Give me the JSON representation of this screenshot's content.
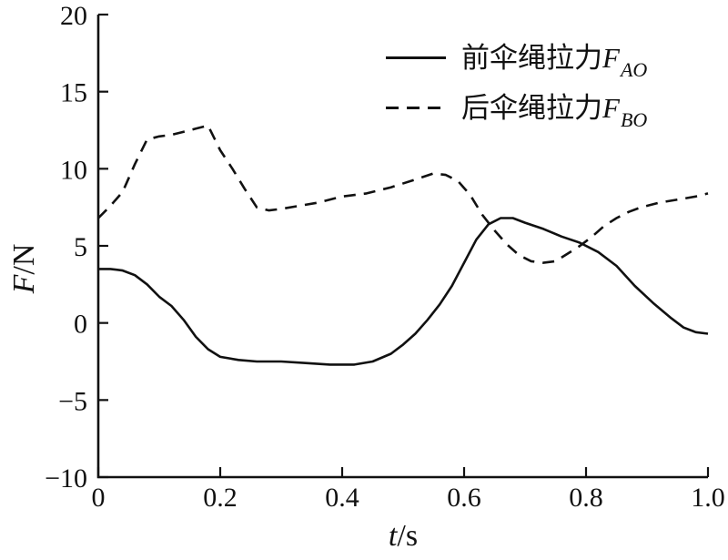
{
  "figure": {
    "background": "#ffffff",
    "ink_color": "#111111"
  },
  "axes": {
    "y_title_sym": "F",
    "y_title_rest": "/N",
    "x_title_sym": "t",
    "x_title_rest": "/s",
    "x_tick_labels": [
      "0",
      "0.2",
      "0.4",
      "0.6",
      "0.8",
      "1.0"
    ],
    "y_tick_labels": [
      "−10",
      "−5",
      "0",
      "5",
      "10",
      "15",
      "20"
    ]
  },
  "legend": {
    "items": [
      {
        "line_style": "solid",
        "text_cn": "前伞绳拉力",
        "sym": "F",
        "sub": "AO"
      },
      {
        "line_style": "dashed",
        "text_cn": "后伞绳拉力",
        "sym": "F",
        "sub": "BO"
      }
    ]
  },
  "chart_data": {
    "type": "line",
    "title": "",
    "xlabel": "t/s",
    "ylabel": "F/N",
    "xlim": [
      0,
      1.0
    ],
    "ylim": [
      -10,
      20
    ],
    "xticks": [
      0,
      0.2,
      0.4,
      0.6,
      0.8,
      1.0
    ],
    "yticks": [
      -10,
      -5,
      0,
      5,
      10,
      15,
      20
    ],
    "grid": false,
    "legend_position": "upper-right-inside",
    "series": [
      {
        "name": "前伞绳拉力F_AO",
        "style": "solid",
        "color": "#111111",
        "points": [
          [
            0.0,
            3.5
          ],
          [
            0.02,
            3.5
          ],
          [
            0.04,
            3.4
          ],
          [
            0.06,
            3.1
          ],
          [
            0.08,
            2.5
          ],
          [
            0.1,
            1.7
          ],
          [
            0.12,
            1.1
          ],
          [
            0.14,
            0.2
          ],
          [
            0.16,
            -0.9
          ],
          [
            0.18,
            -1.7
          ],
          [
            0.2,
            -2.2
          ],
          [
            0.23,
            -2.4
          ],
          [
            0.26,
            -2.5
          ],
          [
            0.3,
            -2.5
          ],
          [
            0.34,
            -2.6
          ],
          [
            0.38,
            -2.7
          ],
          [
            0.42,
            -2.7
          ],
          [
            0.45,
            -2.5
          ],
          [
            0.48,
            -2.0
          ],
          [
            0.5,
            -1.4
          ],
          [
            0.52,
            -0.7
          ],
          [
            0.54,
            0.2
          ],
          [
            0.56,
            1.2
          ],
          [
            0.58,
            2.4
          ],
          [
            0.6,
            3.9
          ],
          [
            0.62,
            5.4
          ],
          [
            0.64,
            6.4
          ],
          [
            0.66,
            6.8
          ],
          [
            0.68,
            6.8
          ],
          [
            0.7,
            6.5
          ],
          [
            0.73,
            6.1
          ],
          [
            0.76,
            5.6
          ],
          [
            0.79,
            5.2
          ],
          [
            0.82,
            4.6
          ],
          [
            0.85,
            3.7
          ],
          [
            0.88,
            2.4
          ],
          [
            0.91,
            1.3
          ],
          [
            0.94,
            0.3
          ],
          [
            0.96,
            -0.3
          ],
          [
            0.98,
            -0.6
          ],
          [
            1.0,
            -0.7
          ]
        ]
      },
      {
        "name": "后伞绳拉力F_BO",
        "style": "dashed",
        "color": "#111111",
        "points": [
          [
            0.0,
            6.8
          ],
          [
            0.02,
            7.6
          ],
          [
            0.04,
            8.5
          ],
          [
            0.06,
            10.3
          ],
          [
            0.08,
            11.9
          ],
          [
            0.1,
            12.1
          ],
          [
            0.12,
            12.2
          ],
          [
            0.14,
            12.4
          ],
          [
            0.16,
            12.6
          ],
          [
            0.18,
            12.8
          ],
          [
            0.2,
            11.2
          ],
          [
            0.22,
            10.0
          ],
          [
            0.24,
            8.7
          ],
          [
            0.26,
            7.5
          ],
          [
            0.28,
            7.3
          ],
          [
            0.3,
            7.4
          ],
          [
            0.33,
            7.6
          ],
          [
            0.36,
            7.8
          ],
          [
            0.4,
            8.2
          ],
          [
            0.44,
            8.4
          ],
          [
            0.48,
            8.8
          ],
          [
            0.52,
            9.3
          ],
          [
            0.55,
            9.7
          ],
          [
            0.57,
            9.6
          ],
          [
            0.59,
            9.2
          ],
          [
            0.61,
            8.3
          ],
          [
            0.63,
            7.0
          ],
          [
            0.65,
            6.0
          ],
          [
            0.67,
            5.1
          ],
          [
            0.69,
            4.4
          ],
          [
            0.71,
            4.0
          ],
          [
            0.73,
            3.9
          ],
          [
            0.75,
            4.0
          ],
          [
            0.77,
            4.5
          ],
          [
            0.79,
            5.0
          ],
          [
            0.81,
            5.6
          ],
          [
            0.83,
            6.3
          ],
          [
            0.85,
            6.8
          ],
          [
            0.87,
            7.2
          ],
          [
            0.89,
            7.5
          ],
          [
            0.92,
            7.8
          ],
          [
            0.95,
            8.0
          ],
          [
            0.98,
            8.2
          ],
          [
            1.0,
            8.4
          ]
        ]
      }
    ]
  }
}
